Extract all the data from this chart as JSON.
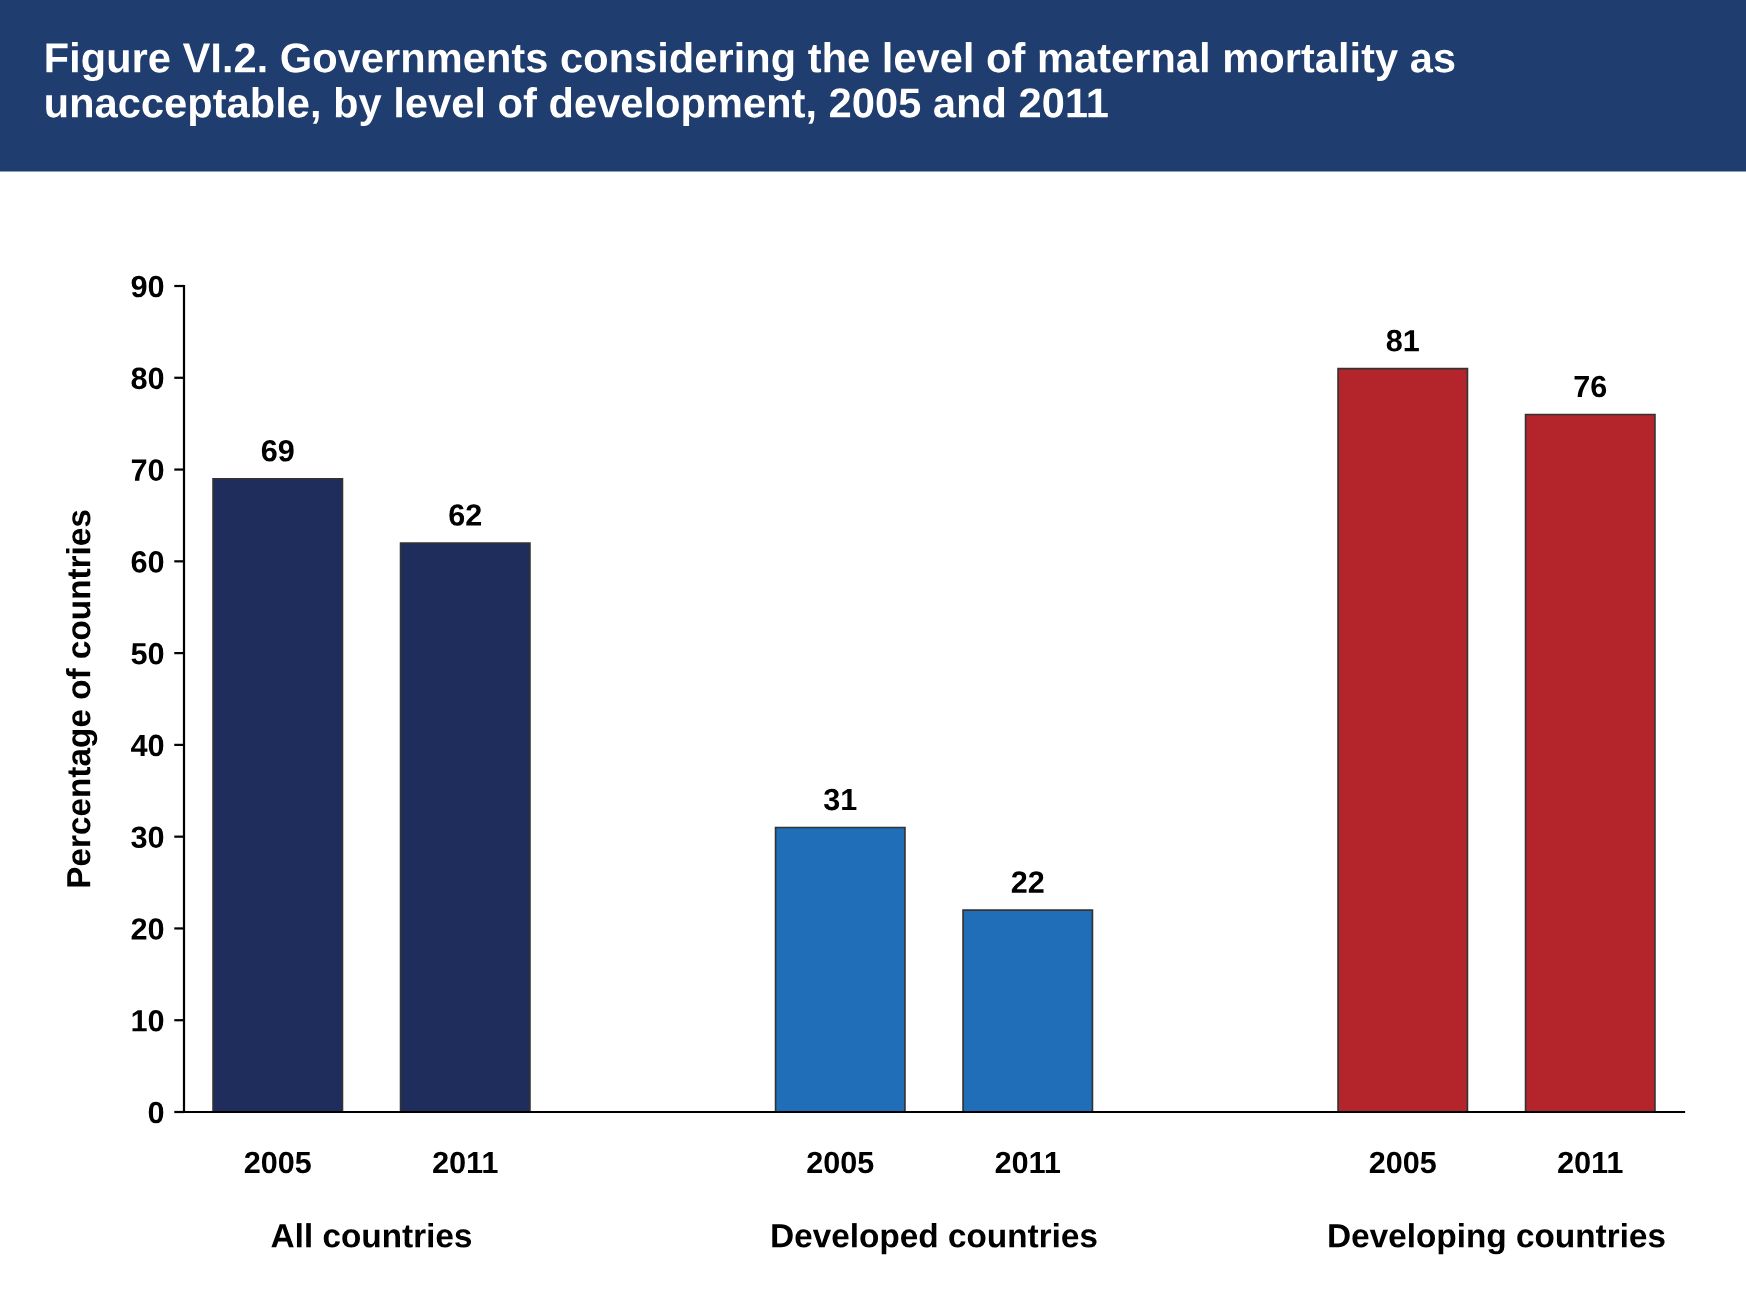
{
  "chart_data": {
    "type": "bar",
    "title": "Figure VI.2. Governments considering the level of maternal mortality as unacceptable, by level of development, 2005 and 2011",
    "ylabel": "Percentage of countries",
    "categories": [
      "2005",
      "2011",
      null,
      "2005",
      "2011",
      null,
      "2005",
      "2011"
    ],
    "values": [
      69,
      62,
      null,
      31,
      22,
      null,
      81,
      76
    ],
    "colors": [
      "#1f2d5c",
      "#1f2d5c",
      null,
      "#1f6eb7",
      "#1f6eb7",
      null,
      "#b3252a",
      "#b3252a"
    ],
    "annotations": [
      "All countries",
      "Developed countries",
      "Developing countries"
    ],
    "ylim": [
      0,
      90
    ],
    "yticks": [
      0,
      10,
      20,
      30,
      40,
      50,
      60,
      70,
      80,
      90
    ],
    "data_labels": true,
    "grid": false
  }
}
